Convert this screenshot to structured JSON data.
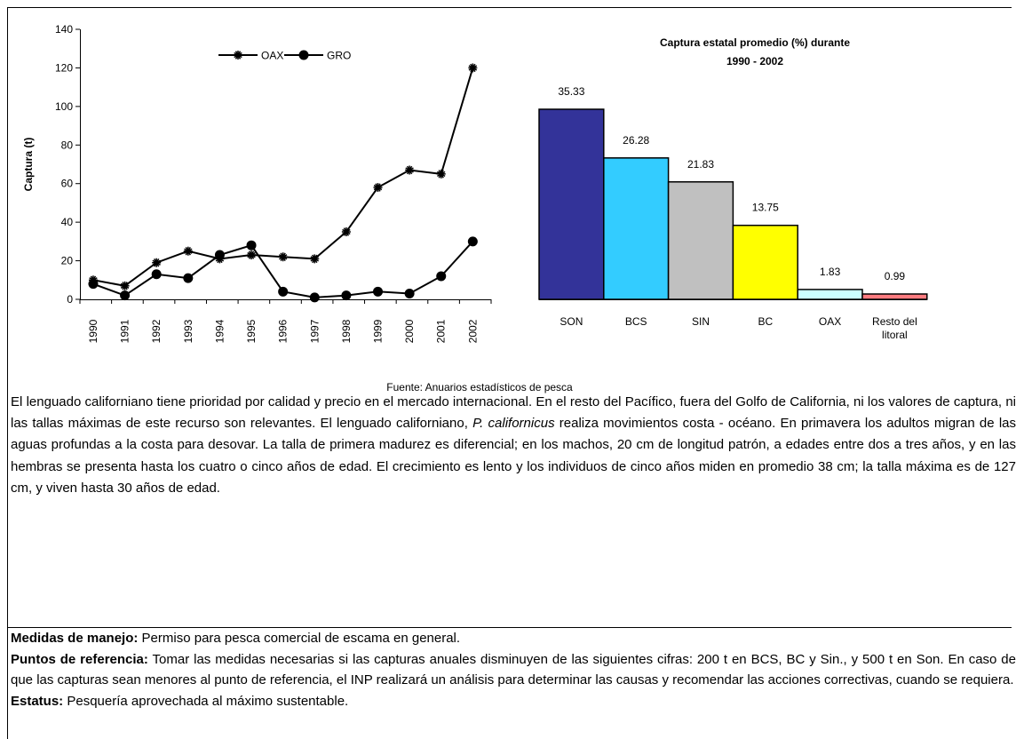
{
  "chart_data": [
    {
      "type": "line",
      "ylabel": "Captura (t)",
      "categories": [
        "1990",
        "1991",
        "1992",
        "1993",
        "1994",
        "1995",
        "1996",
        "1997",
        "1998",
        "1999",
        "2000",
        "2001",
        "2002"
      ],
      "series": [
        {
          "name": "OAX",
          "color": "#000000",
          "marker": "star",
          "values": [
            10,
            7,
            19,
            25,
            21,
            23,
            22,
            21,
            35,
            58,
            67,
            65,
            120
          ]
        },
        {
          "name": "GRO",
          "color": "#000000",
          "marker": "circle",
          "values": [
            8,
            2,
            13,
            11,
            23,
            28,
            4,
            1,
            2,
            4,
            3,
            12,
            30
          ]
        }
      ],
      "ylim": [
        0,
        140
      ],
      "yticks": [
        0,
        20,
        40,
        60,
        80,
        100,
        120,
        140
      ],
      "legend": "top"
    },
    {
      "type": "bar",
      "title": [
        "Captura estatal promedio (%)  durante",
        "1990 - 2002"
      ],
      "categories": [
        "SON",
        "BCS",
        "SIN",
        "BC",
        "OAX",
        "Resto del litoral"
      ],
      "values": [
        35.33,
        26.28,
        21.83,
        13.75,
        1.83,
        0.99
      ],
      "colors": [
        "#333399",
        "#33ccff",
        "#c0c0c0",
        "#ffff00",
        "#ccffff",
        "#ff7c80"
      ]
    }
  ],
  "source": "Fuente: Anuarios estadísticos de pesca",
  "paragraph": [
    "El lenguado californiano  tiene prioridad por calidad y precio en el mercado internacional. En el resto del Pacífico, fuera del Golfo de California, ni los valores de captura, ni las tallas máximas de este recurso son relevantes. El lenguado californiano, ",
    "P. californicus",
    " realiza movimientos costa - océano.  En primavera los adultos migran de las aguas profundas a la costa para desovar. La talla de primera madurez es diferencial; en los machos, 20 cm de longitud patrón, a edades entre dos a tres años, y en las  hembras  se presenta hasta los cuatro o cinco años de edad.  El crecimiento es lento y los individuos de cinco años miden en promedio 38 cm; la talla máxima es de 127 cm, y viven hasta 30 años de edad."
  ],
  "management": [
    {
      "label": "Medidas de manejo:",
      "text": " Permiso para pesca comercial de escama en general."
    },
    {
      "label": "Puntos de referencia:",
      "text": " Tomar las medidas necesarias si las capturas anuales disminuyen de las siguientes cifras: 200 t en BCS, BC y Sin., y 500 t en Son.  En caso de que las capturas sean menores al punto de referencia, el INP realizará un análisis para determinar las causas y recomendar las acciones correctivas, cuando se requiera."
    },
    {
      "label": "Estatus:",
      "text": " Pesquería aprovechada al máximo sustentable."
    }
  ]
}
